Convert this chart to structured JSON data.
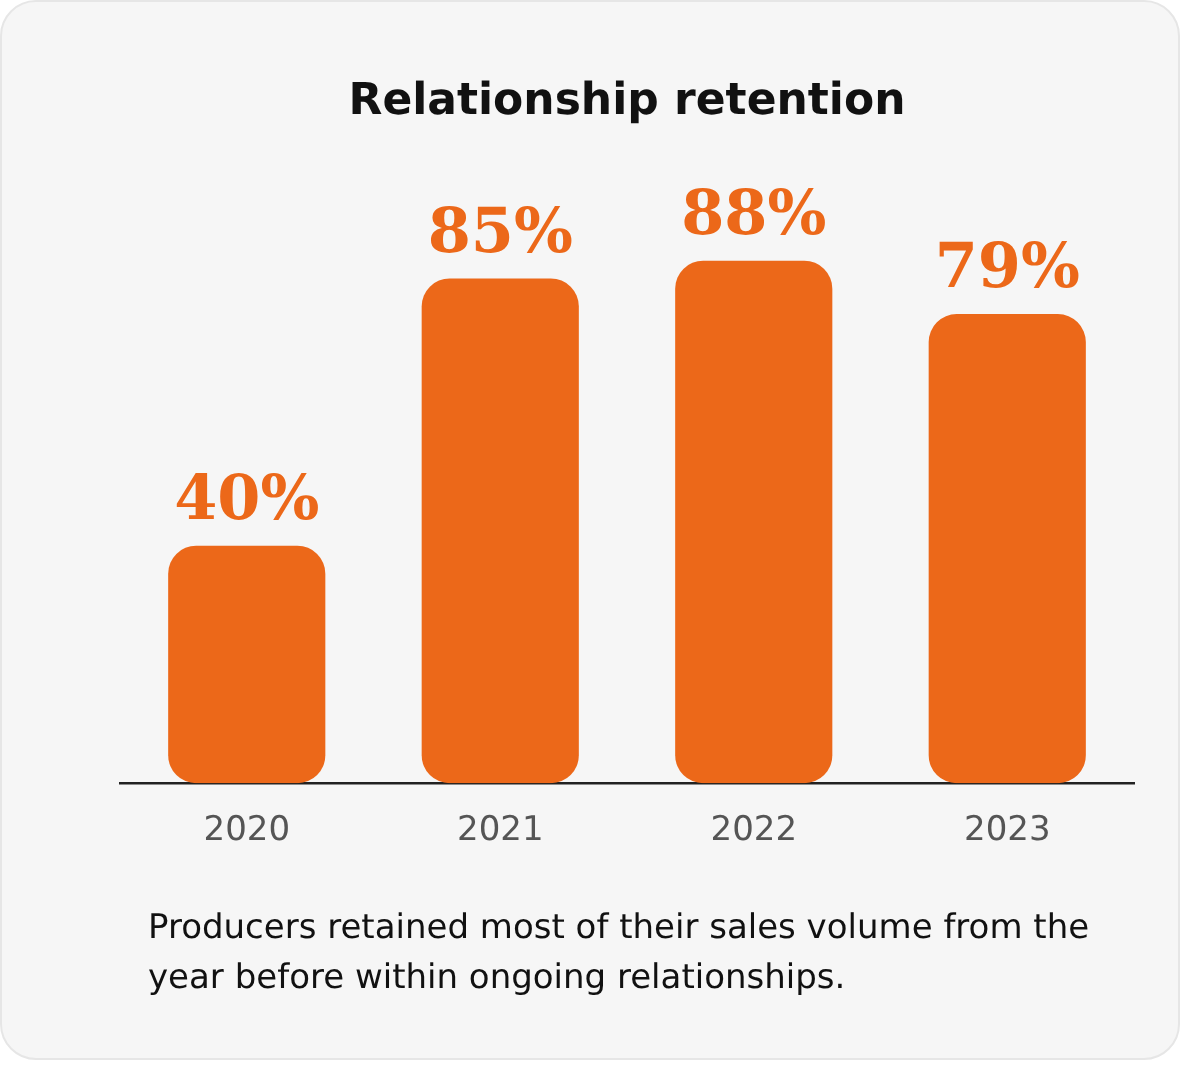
{
  "chart_data": {
    "type": "bar",
    "title": "Relationship retention",
    "categories": [
      "2020",
      "2021",
      "2022",
      "2023"
    ],
    "values": [
      40,
      85,
      88,
      79
    ],
    "value_labels": [
      "40%",
      "85%",
      "88%",
      "79%"
    ],
    "color": "#ec6819",
    "grid": false,
    "legend": false,
    "annotations": [
      "Producers retained most of their sales volume from the year before within ongoing relationships."
    ]
  }
}
